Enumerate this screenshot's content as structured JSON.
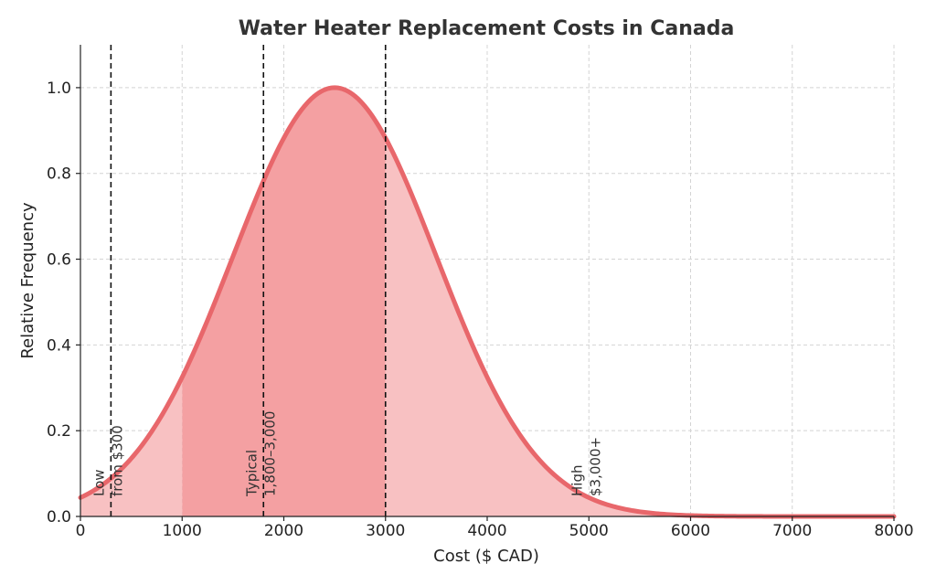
{
  "chart_data": {
    "type": "area",
    "title": "Water Heater Replacement Costs in Canada",
    "xlabel": "Cost ($ CAD)",
    "ylabel": "Relative Frequency",
    "xlim": [
      0,
      8000
    ],
    "ylim": [
      0,
      1.1
    ],
    "x_ticks": [
      0,
      1000,
      2000,
      3000,
      4000,
      5000,
      6000,
      7000,
      8000
    ],
    "y_ticks": [
      0.0,
      0.2,
      0.4,
      0.6,
      0.8,
      1.0
    ],
    "x_tick_labels": [
      "0",
      "1000",
      "2000",
      "3000",
      "4000",
      "5000",
      "6000",
      "7000",
      "8000"
    ],
    "y_tick_labels": [
      "0.0",
      "0.2",
      "0.4",
      "0.6",
      "0.8",
      "1.0"
    ],
    "grid": true,
    "curve": {
      "shape": "gaussian",
      "peak_x": 2500,
      "peak_y": 1.0,
      "sigma": 1000,
      "color": "#e8676b"
    },
    "shaded_ranges": [
      {
        "from": 0,
        "to": 1000,
        "color": "#f8c1c2"
      },
      {
        "from": 1000,
        "to": 3000,
        "color": "#f4a0a2"
      },
      {
        "from": 3000,
        "to": 8000,
        "color": "#f8c1c2"
      }
    ],
    "vertical_lines": [
      300,
      1800,
      3000
    ],
    "annotations": [
      {
        "x": 300,
        "lines": [
          "Low",
          "from $300"
        ]
      },
      {
        "x": 1800,
        "lines": [
          "Typical",
          "1,800–3,000"
        ]
      },
      {
        "x": 5000,
        "lines": [
          "High",
          "$3,000+"
        ]
      }
    ]
  }
}
